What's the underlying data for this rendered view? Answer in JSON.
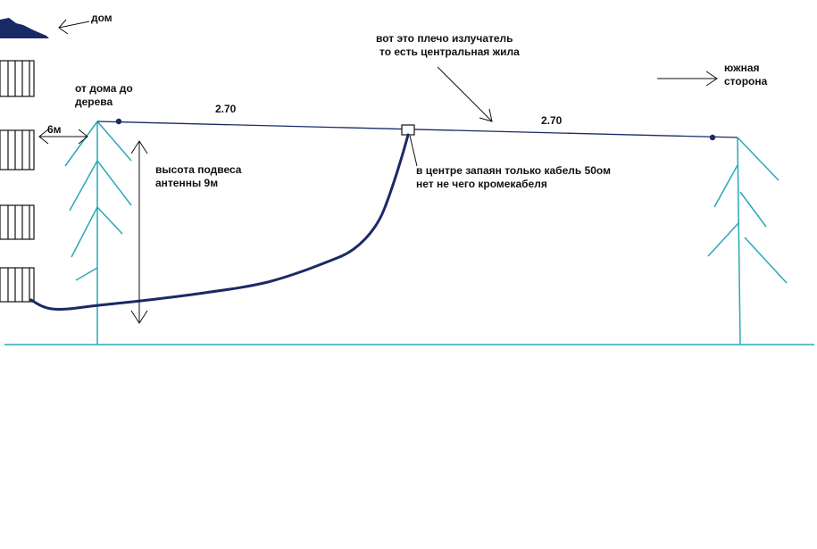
{
  "labels": {
    "house": "дом",
    "radiator_line1": "вот это плечо излучатель",
    "radiator_line2": "то есть центральная жила",
    "south_line1": "южная",
    "south_line2": "сторона",
    "distance_line1": "от дома до",
    "distance_line2": "дерева",
    "distance_value": "6м",
    "left_arm": "2.70",
    "right_arm": "2.70",
    "height_line1": "высота подвеса",
    "height_line2": "антенны 9м",
    "center_line1": "в центре запаян только кабель 50ом",
    "center_line2": "нет не чего кромекабеля"
  },
  "colors": {
    "tree": "#2aa7b8",
    "antenna": "#1a2a66",
    "cable": "#1a2a66",
    "house": "#1a2a66",
    "arrow": "#111111"
  }
}
